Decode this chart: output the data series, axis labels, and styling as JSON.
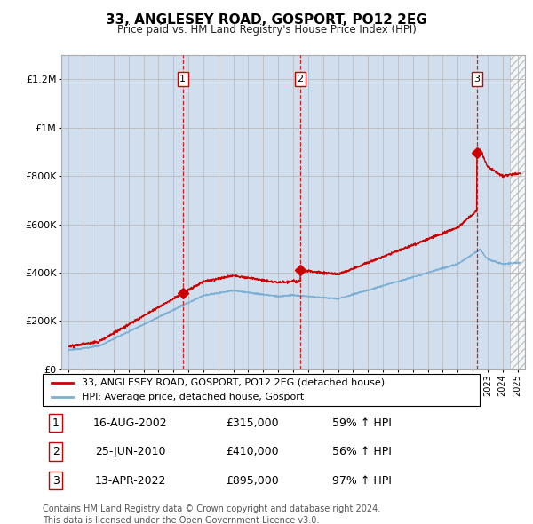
{
  "title": "33, ANGLESEY ROAD, GOSPORT, PO12 2EG",
  "subtitle": "Price paid vs. HM Land Registry's House Price Index (HPI)",
  "ylabel_ticks": [
    "£0",
    "£200K",
    "£400K",
    "£600K",
    "£800K",
    "£1M",
    "£1.2M"
  ],
  "ylim": [
    0,
    1300000
  ],
  "yticks": [
    0,
    200000,
    400000,
    600000,
    800000,
    1000000,
    1200000
  ],
  "sale_prices": [
    315000,
    410000,
    895000
  ],
  "sale_labels": [
    "1",
    "2",
    "3"
  ],
  "sale_year_floats": [
    2002.625,
    2010.479,
    2022.286
  ],
  "sale_pct": [
    "59% ↑ HPI",
    "56% ↑ HPI",
    "97% ↑ HPI"
  ],
  "sale_date_labels": [
    "16-AUG-2002",
    "25-JUN-2010",
    "13-APR-2022"
  ],
  "sale_price_labels": [
    "£315,000",
    "£410,000",
    "£895,000"
  ],
  "legend_house_label": "33, ANGLESEY ROAD, GOSPORT, PO12 2EG (detached house)",
  "legend_hpi_label": "HPI: Average price, detached house, Gosport",
  "house_color": "#cc0000",
  "hpi_color": "#7bafd4",
  "bg_color": "#dce6f1",
  "plot_bg": "#ffffff",
  "grid_color": "#bbbbbb",
  "vline_color": "#cc0000",
  "shade_color": "#c8d8ec",
  "note": "Contains HM Land Registry data © Crown copyright and database right 2024.\nThis data is licensed under the Open Government Licence v3.0.",
  "x_start_year": 1995,
  "x_end_year": 2025
}
